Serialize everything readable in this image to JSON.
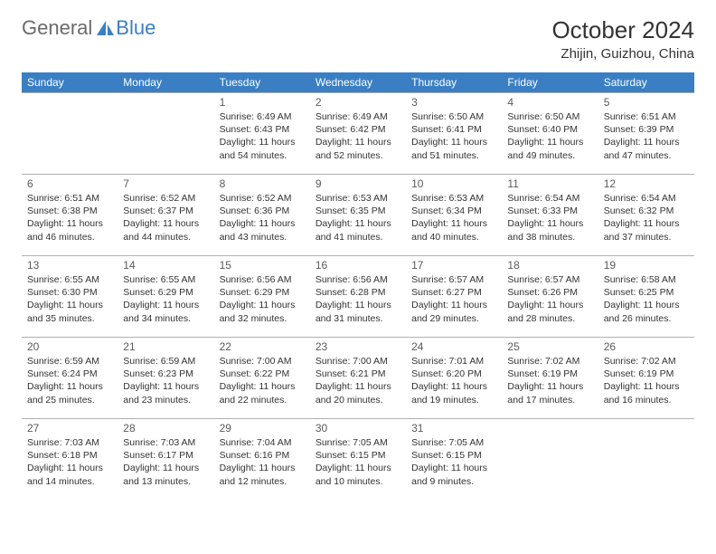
{
  "logo": {
    "text_a": "General",
    "text_b": "Blue"
  },
  "title": "October 2024",
  "location": "Zhijin, Guizhou, China",
  "colors": {
    "header_bg": "#3a7fc4",
    "header_text": "#ffffff",
    "border": "#b0b0b0",
    "logo_gray": "#6a6a6a",
    "logo_blue": "#3a7fc4"
  },
  "weekdays": [
    "Sunday",
    "Monday",
    "Tuesday",
    "Wednesday",
    "Thursday",
    "Friday",
    "Saturday"
  ],
  "weeks": [
    [
      null,
      null,
      {
        "day": "1",
        "sunrise": "6:49 AM",
        "sunset": "6:43 PM",
        "daylight": "11 hours and 54 minutes."
      },
      {
        "day": "2",
        "sunrise": "6:49 AM",
        "sunset": "6:42 PM",
        "daylight": "11 hours and 52 minutes."
      },
      {
        "day": "3",
        "sunrise": "6:50 AM",
        "sunset": "6:41 PM",
        "daylight": "11 hours and 51 minutes."
      },
      {
        "day": "4",
        "sunrise": "6:50 AM",
        "sunset": "6:40 PM",
        "daylight": "11 hours and 49 minutes."
      },
      {
        "day": "5",
        "sunrise": "6:51 AM",
        "sunset": "6:39 PM",
        "daylight": "11 hours and 47 minutes."
      }
    ],
    [
      {
        "day": "6",
        "sunrise": "6:51 AM",
        "sunset": "6:38 PM",
        "daylight": "11 hours and 46 minutes."
      },
      {
        "day": "7",
        "sunrise": "6:52 AM",
        "sunset": "6:37 PM",
        "daylight": "11 hours and 44 minutes."
      },
      {
        "day": "8",
        "sunrise": "6:52 AM",
        "sunset": "6:36 PM",
        "daylight": "11 hours and 43 minutes."
      },
      {
        "day": "9",
        "sunrise": "6:53 AM",
        "sunset": "6:35 PM",
        "daylight": "11 hours and 41 minutes."
      },
      {
        "day": "10",
        "sunrise": "6:53 AM",
        "sunset": "6:34 PM",
        "daylight": "11 hours and 40 minutes."
      },
      {
        "day": "11",
        "sunrise": "6:54 AM",
        "sunset": "6:33 PM",
        "daylight": "11 hours and 38 minutes."
      },
      {
        "day": "12",
        "sunrise": "6:54 AM",
        "sunset": "6:32 PM",
        "daylight": "11 hours and 37 minutes."
      }
    ],
    [
      {
        "day": "13",
        "sunrise": "6:55 AM",
        "sunset": "6:30 PM",
        "daylight": "11 hours and 35 minutes."
      },
      {
        "day": "14",
        "sunrise": "6:55 AM",
        "sunset": "6:29 PM",
        "daylight": "11 hours and 34 minutes."
      },
      {
        "day": "15",
        "sunrise": "6:56 AM",
        "sunset": "6:29 PM",
        "daylight": "11 hours and 32 minutes."
      },
      {
        "day": "16",
        "sunrise": "6:56 AM",
        "sunset": "6:28 PM",
        "daylight": "11 hours and 31 minutes."
      },
      {
        "day": "17",
        "sunrise": "6:57 AM",
        "sunset": "6:27 PM",
        "daylight": "11 hours and 29 minutes."
      },
      {
        "day": "18",
        "sunrise": "6:57 AM",
        "sunset": "6:26 PM",
        "daylight": "11 hours and 28 minutes."
      },
      {
        "day": "19",
        "sunrise": "6:58 AM",
        "sunset": "6:25 PM",
        "daylight": "11 hours and 26 minutes."
      }
    ],
    [
      {
        "day": "20",
        "sunrise": "6:59 AM",
        "sunset": "6:24 PM",
        "daylight": "11 hours and 25 minutes."
      },
      {
        "day": "21",
        "sunrise": "6:59 AM",
        "sunset": "6:23 PM",
        "daylight": "11 hours and 23 minutes."
      },
      {
        "day": "22",
        "sunrise": "7:00 AM",
        "sunset": "6:22 PM",
        "daylight": "11 hours and 22 minutes."
      },
      {
        "day": "23",
        "sunrise": "7:00 AM",
        "sunset": "6:21 PM",
        "daylight": "11 hours and 20 minutes."
      },
      {
        "day": "24",
        "sunrise": "7:01 AM",
        "sunset": "6:20 PM",
        "daylight": "11 hours and 19 minutes."
      },
      {
        "day": "25",
        "sunrise": "7:02 AM",
        "sunset": "6:19 PM",
        "daylight": "11 hours and 17 minutes."
      },
      {
        "day": "26",
        "sunrise": "7:02 AM",
        "sunset": "6:19 PM",
        "daylight": "11 hours and 16 minutes."
      }
    ],
    [
      {
        "day": "27",
        "sunrise": "7:03 AM",
        "sunset": "6:18 PM",
        "daylight": "11 hours and 14 minutes."
      },
      {
        "day": "28",
        "sunrise": "7:03 AM",
        "sunset": "6:17 PM",
        "daylight": "11 hours and 13 minutes."
      },
      {
        "day": "29",
        "sunrise": "7:04 AM",
        "sunset": "6:16 PM",
        "daylight": "11 hours and 12 minutes."
      },
      {
        "day": "30",
        "sunrise": "7:05 AM",
        "sunset": "6:15 PM",
        "daylight": "11 hours and 10 minutes."
      },
      {
        "day": "31",
        "sunrise": "7:05 AM",
        "sunset": "6:15 PM",
        "daylight": "11 hours and 9 minutes."
      },
      null,
      null
    ]
  ],
  "labels": {
    "sunrise": "Sunrise:",
    "sunset": "Sunset:",
    "daylight": "Daylight:"
  }
}
